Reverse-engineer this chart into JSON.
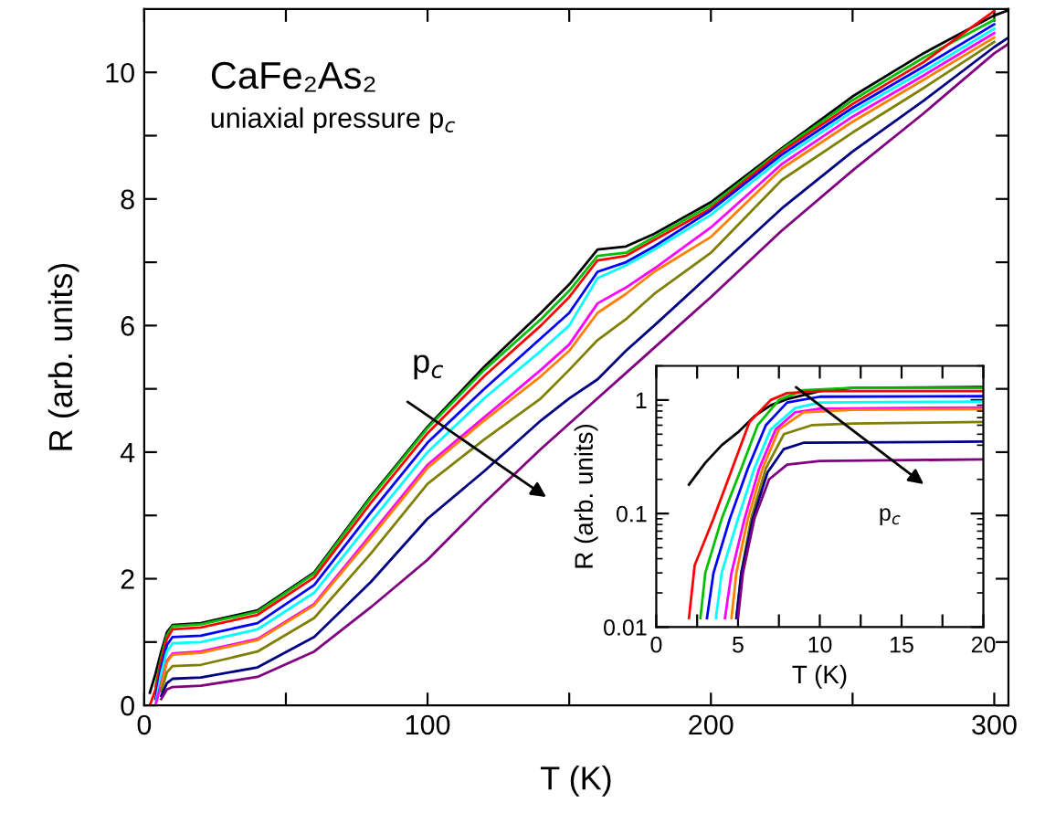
{
  "chart_data": [
    {
      "type": "line",
      "xlabel": "T (K)",
      "ylabel": "R (arb. units)",
      "xlim": [
        0,
        305
      ],
      "ylim": [
        0,
        11
      ],
      "xticks": [
        0,
        {
          "value": 50,
          "label": null
        },
        100,
        {
          "value": 150,
          "label": null
        },
        200,
        {
          "value": 250,
          "label": null
        },
        300
      ],
      "yticks": [
        0,
        {
          "value": 1,
          "label": null
        },
        2,
        {
          "value": 3,
          "label": null
        },
        4,
        {
          "value": 5,
          "label": null
        },
        6,
        {
          "value": 7,
          "label": null
        },
        8,
        {
          "value": 9,
          "label": null
        },
        10
      ],
      "annotations": [
        "CaFe₂As₂",
        "uniaxial pressure p$_{c}$",
        "p$_{c}$"
      ],
      "x": [
        2,
        4,
        6,
        8,
        10,
        20,
        40,
        60,
        80,
        100,
        120,
        140,
        150,
        160,
        170,
        180,
        200,
        225,
        250,
        275,
        300,
        305
      ],
      "series": [
        {
          "color": "#000000",
          "values": [
            0.2,
            0.5,
            0.85,
            1.15,
            1.27,
            1.3,
            1.5,
            2.1,
            3.3,
            4.4,
            5.35,
            6.2,
            6.65,
            7.2,
            7.25,
            7.45,
            7.95,
            8.8,
            9.62,
            10.3,
            10.9,
            10.98
          ]
        },
        {
          "color": "#00c000",
          "values": [
            null,
            0.3,
            0.75,
            1.1,
            1.25,
            1.28,
            1.48,
            2.08,
            3.28,
            4.38,
            5.3,
            6.1,
            6.55,
            7.1,
            7.15,
            7.4,
            7.9,
            8.78,
            9.56,
            10.23,
            10.83,
            null
          ]
        },
        {
          "color": "#ff0000",
          "values": [
            0.0,
            0.25,
            0.7,
            1.05,
            1.2,
            1.23,
            1.43,
            2.02,
            3.2,
            4.3,
            5.2,
            6.0,
            6.45,
            7.03,
            7.1,
            7.35,
            7.85,
            8.75,
            9.5,
            10.16,
            10.97,
            null
          ]
        },
        {
          "color": "#0000ff",
          "values": [
            null,
            0.1,
            0.6,
            0.95,
            1.08,
            1.1,
            1.3,
            1.9,
            3.05,
            4.15,
            5.0,
            5.8,
            6.2,
            6.85,
            7.0,
            7.25,
            7.82,
            8.7,
            9.44,
            10.09,
            10.76,
            null
          ]
        },
        {
          "color": "#00ffff",
          "values": [
            null,
            0.02,
            0.5,
            0.85,
            0.98,
            1.0,
            1.2,
            1.78,
            2.9,
            4.0,
            4.85,
            5.6,
            6.0,
            6.75,
            6.95,
            7.2,
            7.75,
            8.64,
            9.38,
            10.02,
            10.69,
            null
          ]
        },
        {
          "color": "#ff00ff",
          "values": [
            null,
            0.0,
            0.35,
            0.7,
            0.82,
            0.85,
            1.05,
            1.6,
            2.7,
            3.8,
            4.55,
            5.3,
            5.7,
            6.35,
            6.6,
            6.9,
            7.55,
            8.55,
            9.3,
            9.95,
            10.62,
            null
          ]
        },
        {
          "color": "#ff8000",
          "values": [
            null,
            null,
            0.3,
            0.68,
            0.8,
            0.83,
            1.03,
            1.58,
            2.65,
            3.75,
            4.5,
            5.2,
            5.6,
            6.2,
            6.5,
            6.85,
            7.4,
            8.48,
            9.22,
            9.88,
            10.55,
            null
          ]
        },
        {
          "color": "#808000",
          "values": [
            null,
            null,
            0.22,
            0.52,
            0.62,
            0.64,
            0.85,
            1.38,
            2.4,
            3.5,
            4.2,
            4.85,
            5.3,
            5.77,
            6.1,
            6.5,
            7.15,
            8.3,
            9.05,
            9.75,
            10.48,
            null
          ]
        },
        {
          "color": "#000080",
          "values": [
            null,
            null,
            0.15,
            0.35,
            0.42,
            0.44,
            0.6,
            1.08,
            1.95,
            2.95,
            3.7,
            4.5,
            4.85,
            5.15,
            5.6,
            6.0,
            6.82,
            7.85,
            8.75,
            9.55,
            10.4,
            10.55
          ]
        },
        {
          "color": "#800080",
          "values": [
            null,
            null,
            0.1,
            0.25,
            0.29,
            0.31,
            0.45,
            0.85,
            1.55,
            2.3,
            3.2,
            4.05,
            4.45,
            4.85,
            5.25,
            5.65,
            6.45,
            7.5,
            8.45,
            9.35,
            10.3,
            10.45
          ]
        }
      ]
    },
    {
      "type": "line",
      "xlabel": "T (K)",
      "ylabel": "R (arb. units)",
      "log": "y",
      "xlim": [
        0,
        20
      ],
      "ylim": [
        0.01,
        2
      ],
      "xticks": [
        0,
        {
          "value": 2.5,
          "label": null
        },
        5,
        {
          "value": 7.5,
          "label": null
        },
        10,
        {
          "value": 12.5,
          "label": null
        },
        15,
        {
          "value": 17.5,
          "label": null
        },
        20
      ],
      "yticks": [
        0.01,
        0.1,
        1
      ],
      "annotations": [
        "p$_{c}$"
      ],
      "series": [
        {
          "color": "#000000",
          "x": [
            2,
            3,
            4,
            5,
            6,
            7,
            8,
            10,
            12,
            20
          ],
          "values": [
            0.18,
            0.28,
            0.4,
            0.52,
            0.72,
            0.9,
            1.02,
            1.2,
            1.28,
            1.3
          ]
        },
        {
          "color": "#00c000",
          "x": [
            2.7,
            3.0,
            4.0,
            5.2,
            6.2,
            7.5,
            9,
            12,
            20
          ],
          "values": [
            0.012,
            0.03,
            0.09,
            0.25,
            0.6,
            1.0,
            1.22,
            1.28,
            1.28
          ]
        },
        {
          "color": "#ff0000",
          "x": [
            2.0,
            2.35,
            3.5,
            4.6,
            5.7,
            7,
            8,
            10,
            20
          ],
          "values": [
            0.012,
            0.035,
            0.09,
            0.24,
            0.64,
            1.0,
            1.15,
            1.2,
            1.2
          ]
        },
        {
          "color": "#0000ff",
          "x": [
            3.1,
            3.5,
            4.5,
            5.6,
            6.7,
            8,
            10,
            20
          ],
          "values": [
            0.012,
            0.03,
            0.09,
            0.25,
            0.6,
            0.95,
            1.07,
            1.08
          ]
        },
        {
          "color": "#00ffff",
          "x": [
            3.65,
            4.0,
            5.0,
            6.0,
            7.0,
            8.5,
            10,
            20
          ],
          "values": [
            0.012,
            0.03,
            0.09,
            0.25,
            0.55,
            0.85,
            0.95,
            0.97
          ]
        },
        {
          "color": "#ff00ff",
          "x": [
            4.2,
            4.6,
            5.4,
            6.3,
            7.3,
            8.5,
            10,
            20
          ],
          "values": [
            0.012,
            0.03,
            0.09,
            0.25,
            0.55,
            0.78,
            0.84,
            0.86
          ]
        },
        {
          "color": "#ff8000",
          "x": [
            4.6,
            4.9,
            5.6,
            6.5,
            7.5,
            9,
            12,
            20
          ],
          "values": [
            0.012,
            0.03,
            0.09,
            0.25,
            0.55,
            0.78,
            0.82,
            0.83
          ]
        },
        {
          "color": "#808000",
          "x": [
            4.9,
            5.2,
            5.8,
            6.7,
            7.8,
            9.5,
            12,
            20
          ],
          "values": [
            0.012,
            0.03,
            0.09,
            0.25,
            0.5,
            0.6,
            0.62,
            0.64
          ]
        },
        {
          "color": "#000080",
          "x": [
            4.9,
            5.2,
            5.9,
            6.8,
            7.8,
            9,
            20
          ],
          "values": [
            0.012,
            0.03,
            0.09,
            0.23,
            0.37,
            0.42,
            0.43
          ]
        },
        {
          "color": "#800080",
          "x": [
            5.0,
            5.3,
            6.0,
            6.9,
            8,
            10,
            20
          ],
          "values": [
            0.012,
            0.03,
            0.09,
            0.2,
            0.27,
            0.29,
            0.3
          ]
        }
      ]
    }
  ]
}
